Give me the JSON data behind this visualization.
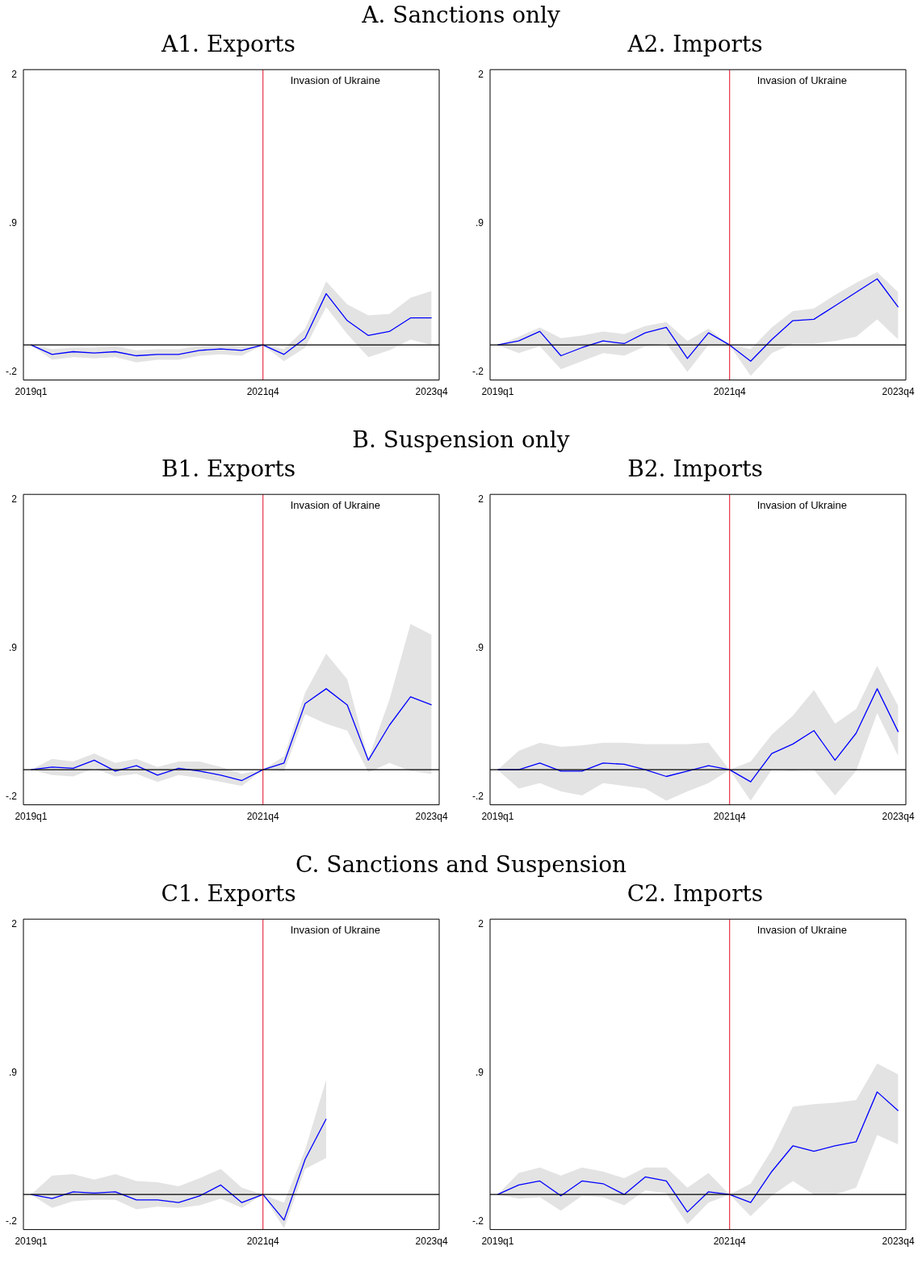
{
  "chart_data": [
    {
      "type": "line",
      "title": "A1. Exports",
      "annotations": [
        "A. Sanctions only"
      ],
      "categories": [
        "2019q1",
        null,
        null,
        null,
        null,
        null,
        null,
        null,
        null,
        null,
        null,
        "2021q4",
        null,
        null,
        null,
        null,
        null,
        null,
        null,
        "2023q4"
      ],
      "ylim": [
        -0.26,
        2.04
      ],
      "yticks": [
        {
          "value": -0.2,
          "label": "-.2"
        },
        {
          "value": 0.9,
          "label": ".9"
        },
        {
          "value": 2,
          "label": "2"
        }
      ],
      "grid": false,
      "legend": false,
      "ref_lines": [
        {
          "axis": "x",
          "value": "2021q4",
          "label": "Invasion of Ukraine",
          "color": "#e8344a"
        },
        {
          "axis": "y",
          "value": 0,
          "color": "#000000"
        }
      ],
      "series": [
        {
          "color": "#0000ff",
          "values": [
            0,
            -0.07,
            -0.05,
            -0.06,
            -0.05,
            -0.08,
            -0.07,
            -0.07,
            -0.04,
            -0.03,
            -0.04,
            0,
            -0.07,
            0.05,
            0.38,
            0.18,
            0.07,
            0.1,
            0.2,
            0.2
          ],
          "lower": [
            0,
            -0.11,
            -0.09,
            -0.1,
            -0.09,
            -0.13,
            -0.11,
            -0.11,
            -0.08,
            -0.07,
            -0.08,
            0,
            -0.12,
            -0.02,
            0.28,
            0.08,
            -0.09,
            -0.04,
            0.04,
            0
          ],
          "upper": [
            0,
            -0.03,
            -0.02,
            -0.02,
            -0.01,
            -0.04,
            -0.03,
            -0.03,
            -0.01,
            0,
            -0.01,
            0,
            -0.03,
            0.12,
            0.47,
            0.3,
            0.22,
            0.23,
            0.35,
            0.4
          ]
        }
      ]
    },
    {
      "type": "line",
      "title": "A2. Imports",
      "categories": [
        "2019q1",
        null,
        null,
        null,
        null,
        null,
        null,
        null,
        null,
        null,
        null,
        "2021q4",
        null,
        null,
        null,
        null,
        null,
        null,
        null,
        "2023q4"
      ],
      "ylim": [
        -0.26,
        2.04
      ],
      "yticks": [
        {
          "value": -0.2,
          "label": "-.2"
        },
        {
          "value": 0.9,
          "label": ".9"
        },
        {
          "value": 2,
          "label": "2"
        }
      ],
      "grid": false,
      "legend": false,
      "ref_lines": [
        {
          "axis": "x",
          "value": "2021q4",
          "label": "Invasion of Ukraine",
          "color": "#e8344a"
        },
        {
          "axis": "y",
          "value": 0,
          "color": "#000000"
        }
      ],
      "series": [
        {
          "color": "#0000ff",
          "values": [
            0,
            0.03,
            0.1,
            -0.08,
            -0.02,
            0.03,
            0.01,
            0.09,
            0.13,
            -0.1,
            0.09,
            0,
            -0.12,
            0.04,
            0.18,
            0.19,
            0.29,
            0.39,
            0.49,
            0.28
          ],
          "lower": [
            0,
            -0.06,
            -0.01,
            -0.18,
            -0.12,
            -0.06,
            -0.08,
            -0.01,
            0.01,
            -0.2,
            0,
            0,
            -0.23,
            -0.06,
            0.01,
            0.01,
            0.03,
            0.06,
            0.19,
            0.04
          ],
          "upper": [
            0,
            0.06,
            0.13,
            0.05,
            0.07,
            0.1,
            0.08,
            0.14,
            0.17,
            0.03,
            0.12,
            0,
            -0.03,
            0.13,
            0.25,
            0.27,
            0.37,
            0.46,
            0.54,
            0.39
          ]
        }
      ]
    },
    {
      "type": "line",
      "title": "B1. Exports",
      "annotations": [
        "B. Suspension only"
      ],
      "categories": [
        "2019q1",
        null,
        null,
        null,
        null,
        null,
        null,
        null,
        null,
        null,
        null,
        "2021q4",
        null,
        null,
        null,
        null,
        null,
        null,
        null,
        "2023q4"
      ],
      "ylim": [
        -0.26,
        2.04
      ],
      "yticks": [
        {
          "value": -0.2,
          "label": "-.2"
        },
        {
          "value": 0.9,
          "label": ".9"
        },
        {
          "value": 2,
          "label": "2"
        }
      ],
      "grid": false,
      "legend": false,
      "ref_lines": [
        {
          "axis": "x",
          "value": "2021q4",
          "label": "Invasion of Ukraine",
          "color": "#e8344a"
        },
        {
          "axis": "y",
          "value": 0,
          "color": "#000000"
        }
      ],
      "series": [
        {
          "color": "#0000ff",
          "values": [
            0,
            0.02,
            0.01,
            0.07,
            -0.01,
            0.03,
            -0.04,
            0.01,
            -0.01,
            -0.04,
            -0.08,
            0,
            0.05,
            0.49,
            0.6,
            0.48,
            0.07,
            0.33,
            0.54,
            0.48
          ],
          "lower": [
            0,
            -0.04,
            -0.05,
            0.01,
            -0.05,
            -0.03,
            -0.09,
            -0.04,
            -0.06,
            -0.09,
            -0.12,
            0,
            -0.01,
            0.41,
            0.34,
            0.29,
            -0.02,
            0.05,
            -0.01,
            -0.03
          ],
          "upper": [
            0,
            0.08,
            0.06,
            0.12,
            0.05,
            0.08,
            0.02,
            0.06,
            0.06,
            0.02,
            -0.03,
            0,
            0.1,
            0.57,
            0.86,
            0.67,
            0.08,
            0.52,
            1.08,
            1.0
          ]
        }
      ]
    },
    {
      "type": "line",
      "title": "B2. Imports",
      "categories": [
        "2019q1",
        null,
        null,
        null,
        null,
        null,
        null,
        null,
        null,
        null,
        null,
        "2021q4",
        null,
        null,
        null,
        null,
        null,
        null,
        null,
        "2023q4"
      ],
      "ylim": [
        -0.26,
        2.04
      ],
      "yticks": [
        {
          "value": -0.2,
          "label": "-.2"
        },
        {
          "value": 0.9,
          "label": ".9"
        },
        {
          "value": 2,
          "label": "2"
        }
      ],
      "grid": false,
      "legend": false,
      "ref_lines": [
        {
          "axis": "x",
          "value": "2021q4",
          "label": "Invasion of Ukraine",
          "color": "#e8344a"
        },
        {
          "axis": "y",
          "value": 0,
          "color": "#000000"
        }
      ],
      "series": [
        {
          "color": "#0000ff",
          "values": [
            0,
            0,
            0.05,
            -0.01,
            -0.01,
            0.05,
            0.04,
            0,
            -0.05,
            -0.01,
            0.03,
            0,
            -0.09,
            0.12,
            0.19,
            0.29,
            0.07,
            0.27,
            0.6,
            0.28
          ],
          "lower": [
            0,
            -0.14,
            -0.1,
            -0.16,
            -0.19,
            -0.1,
            -0.12,
            -0.14,
            -0.23,
            -0.16,
            -0.1,
            0,
            -0.23,
            0,
            -0.01,
            0,
            -0.19,
            -0.01,
            0.42,
            0.1
          ],
          "upper": [
            0,
            0.14,
            0.2,
            0.17,
            0.18,
            0.2,
            0.2,
            0.19,
            0.19,
            0.19,
            0.2,
            0,
            0.06,
            0.26,
            0.4,
            0.59,
            0.34,
            0.45,
            0.77,
            0.47
          ]
        }
      ]
    },
    {
      "type": "line",
      "title": "C1. Exports",
      "annotations": [
        "C. Sanctions and Suspension"
      ],
      "categories": [
        "2019q1",
        null,
        null,
        null,
        null,
        null,
        null,
        null,
        null,
        null,
        null,
        "2021q4",
        null,
        null,
        null,
        null,
        null,
        null,
        null,
        "2023q4"
      ],
      "ylim": [
        -0.26,
        2.04
      ],
      "yticks": [
        {
          "value": -0.2,
          "label": "-.2"
        },
        {
          "value": 0.9,
          "label": ".9"
        },
        {
          "value": 2,
          "label": "2"
        }
      ],
      "grid": false,
      "legend": false,
      "ref_lines": [
        {
          "axis": "x",
          "value": "2021q4",
          "label": "Invasion of Ukraine",
          "color": "#e8344a"
        },
        {
          "axis": "y",
          "value": 0,
          "color": "#000000"
        }
      ],
      "series": [
        {
          "color": "#0000ff",
          "values": [
            0,
            -0.03,
            0.02,
            0.01,
            0.02,
            -0.04,
            -0.04,
            -0.06,
            -0.01,
            0.07,
            -0.06,
            0,
            -0.19,
            0.26,
            0.56,
            null,
            null,
            null,
            null,
            null
          ],
          "lower": [
            0,
            -0.1,
            -0.05,
            -0.04,
            -0.04,
            -0.11,
            -0.09,
            -0.1,
            -0.08,
            -0.03,
            -0.1,
            0,
            -0.25,
            0.19,
            0.27,
            null,
            null,
            null,
            null,
            null
          ],
          "upper": [
            0,
            0.14,
            0.15,
            0.11,
            0.15,
            0.1,
            0.09,
            0.06,
            0.12,
            0.19,
            0.05,
            0,
            -0.06,
            0.33,
            0.85,
            null,
            null,
            null,
            null,
            null
          ]
        }
      ]
    },
    {
      "type": "line",
      "title": "C2. Imports",
      "categories": [
        "2019q1",
        null,
        null,
        null,
        null,
        null,
        null,
        null,
        null,
        null,
        null,
        "2021q4",
        null,
        null,
        null,
        null,
        null,
        null,
        null,
        "2023q4"
      ],
      "ylim": [
        -0.26,
        2.04
      ],
      "yticks": [
        {
          "value": -0.2,
          "label": "-.2"
        },
        {
          "value": 0.9,
          "label": ".9"
        },
        {
          "value": 2,
          "label": "2"
        }
      ],
      "grid": false,
      "legend": false,
      "ref_lines": [
        {
          "axis": "x",
          "value": "2021q4",
          "label": "Invasion of Ukraine",
          "color": "#e8344a"
        },
        {
          "axis": "y",
          "value": 0,
          "color": "#000000"
        }
      ],
      "series": [
        {
          "color": "#0000ff",
          "values": [
            0,
            0.07,
            0.1,
            -0.01,
            0.1,
            0.08,
            0,
            0.13,
            0.1,
            -0.13,
            0.02,
            0,
            -0.06,
            0.17,
            0.36,
            0.32,
            0.36,
            0.39,
            0.76,
            0.62
          ],
          "lower": [
            0,
            -0.03,
            -0.02,
            -0.12,
            -0.01,
            -0.02,
            -0.08,
            0.03,
            0.01,
            -0.22,
            -0.06,
            0,
            -0.16,
            -0.01,
            0.1,
            0,
            0,
            0.05,
            0.44,
            0.37
          ],
          "upper": [
            0,
            0.16,
            0.2,
            0.14,
            0.2,
            0.17,
            0.12,
            0.2,
            0.2,
            0.05,
            0.16,
            0,
            0.08,
            0.33,
            0.65,
            0.67,
            0.68,
            0.7,
            0.97,
            0.89
          ]
        }
      ]
    }
  ]
}
